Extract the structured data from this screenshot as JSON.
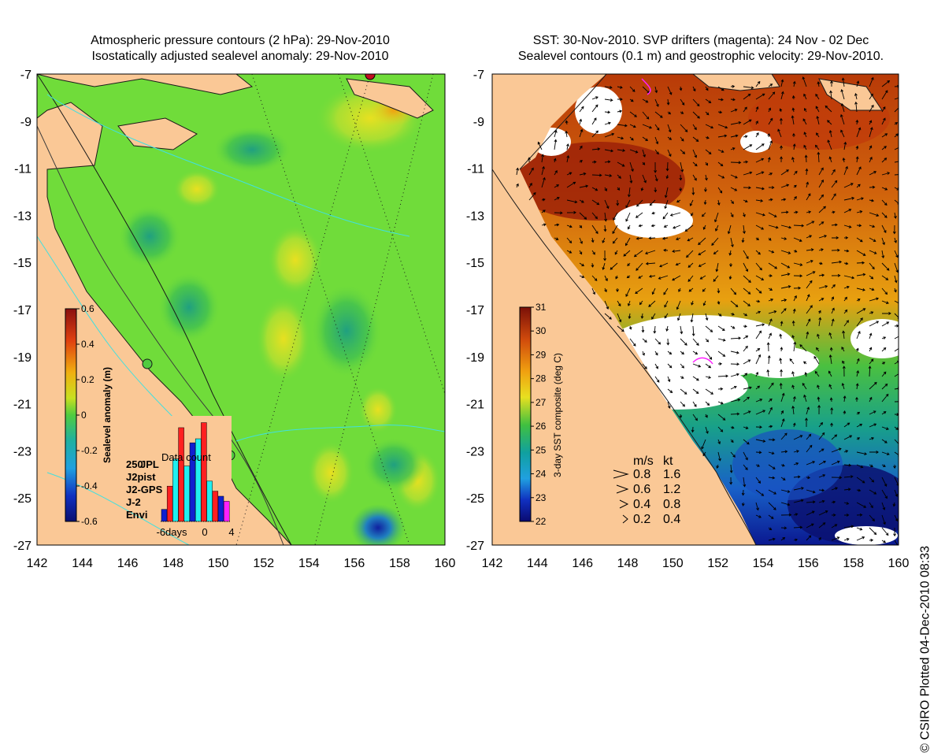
{
  "left_panel": {
    "title_line1": "Atmospheric pressure contours (2 hPa): 29-Nov-2010",
    "title_line2": "Isostatically adjusted sealevel anomaly: 29-Nov-2010",
    "colorbar": {
      "label": "Sealevel anomaly (m)",
      "ticks": [
        "0.6",
        "0.4",
        "0.2",
        "0",
        "-0.2",
        "-0.4",
        "-0.6"
      ]
    },
    "inset": {
      "title": "Data count",
      "count_label": "250",
      "legend": [
        {
          "label": "JPL",
          "color": "#1020d0"
        },
        {
          "label": "J2pist",
          "color": "#20e020"
        },
        {
          "label": "J2-GPS",
          "color": "#ff20ff"
        },
        {
          "label": "J-2",
          "color": "#ff2020"
        },
        {
          "label": "Envi",
          "color": "#20f0f0"
        }
      ],
      "x_labels": [
        "-6days",
        "0",
        "4"
      ]
    }
  },
  "right_panel": {
    "title_line1": "SST: 30-Nov-2010. SVP drifters (magenta): 24 Nov - 02 Dec",
    "title_line2": "Sealevel contours (0.1 m) and geostrophic velocity: 29-Nov-2010.",
    "colorbar": {
      "label": "3-day SST composite (deg C)",
      "ticks": [
        "31",
        "30",
        "29",
        "28",
        "27",
        "26",
        "25",
        "24",
        "23",
        "22"
      ]
    },
    "velocity_legend": {
      "header_ms": "m/s",
      "header_kt": "kt",
      "rows": [
        {
          "ms": "0.8",
          "kt": "1.6"
        },
        {
          "ms": "0.6",
          "kt": "1.2"
        },
        {
          "ms": "0.4",
          "kt": "0.8"
        },
        {
          "ms": "0.2",
          "kt": "0.4"
        }
      ]
    }
  },
  "axes": {
    "y_ticks": [
      "-7",
      "-9",
      "-11",
      "-13",
      "-15",
      "-17",
      "-19",
      "-21",
      "-23",
      "-25",
      "-27"
    ],
    "x_ticks": [
      "142",
      "144",
      "146",
      "148",
      "150",
      "152",
      "154",
      "156",
      "158",
      "160"
    ]
  },
  "footer_stamp": "© CSIRO Plotted 04-Dec-2010 08:33",
  "colors": {
    "land": "#fac896",
    "sla_background": "#70dc3a",
    "sst_warm": "#c8420a",
    "sst_mid": "#e88a10",
    "sst_cool": "#1a9a7c",
    "sst_cold": "#0a1a9a"
  }
}
